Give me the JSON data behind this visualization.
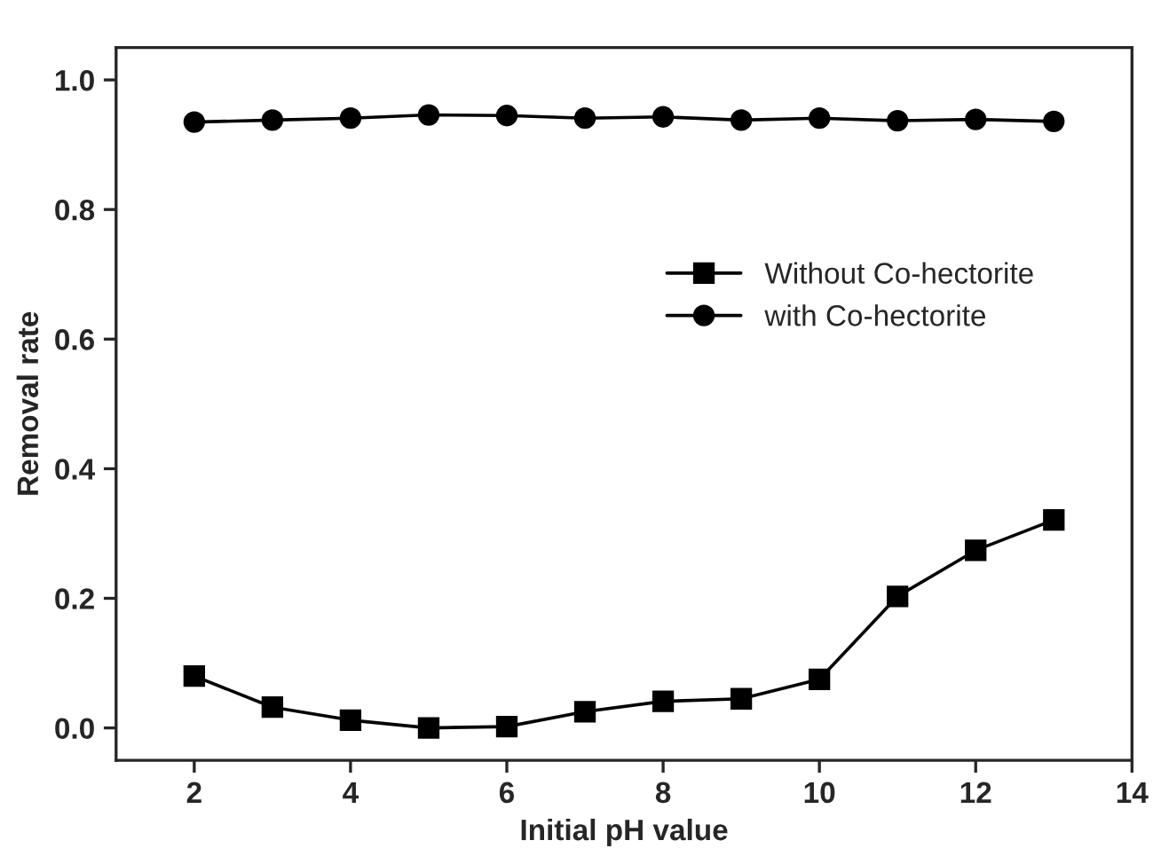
{
  "chart_data": {
    "type": "line",
    "xlabel": "Initial pH value",
    "ylabel": "Removal rate",
    "x": [
      2,
      3,
      4,
      5,
      6,
      7,
      8,
      9,
      10,
      11,
      12,
      13
    ],
    "series": [
      {
        "name": "Without Co-hectorite",
        "color": "#000000",
        "marker": "square",
        "values": [
          0.08,
          0.032,
          0.012,
          0.0,
          0.002,
          0.025,
          0.041,
          0.045,
          0.075,
          0.203,
          0.274,
          0.321
        ]
      },
      {
        "name": "with Co-hectorite",
        "color": "#000000",
        "marker": "circle",
        "values": [
          0.935,
          0.938,
          0.941,
          0.946,
          0.945,
          0.941,
          0.943,
          0.938,
          0.941,
          0.937,
          0.939,
          0.936
        ]
      }
    ],
    "xlim": [
      1,
      14
    ],
    "ylim": [
      -0.05,
      1.05
    ],
    "xticks": [
      2,
      4,
      6,
      8,
      10,
      12,
      14
    ],
    "yticks": [
      {
        "value": 0,
        "label": "0.0"
      },
      {
        "value": 0.2,
        "label": "0.2"
      },
      {
        "value": 0.4,
        "label": "0.4"
      },
      {
        "value": 0.6,
        "label": "0.6"
      },
      {
        "value": 0.8,
        "label": "0.8"
      },
      {
        "value": 1.0,
        "label": "1.0"
      }
    ],
    "grid": false,
    "legend": "right",
    "line_style": "solid"
  }
}
